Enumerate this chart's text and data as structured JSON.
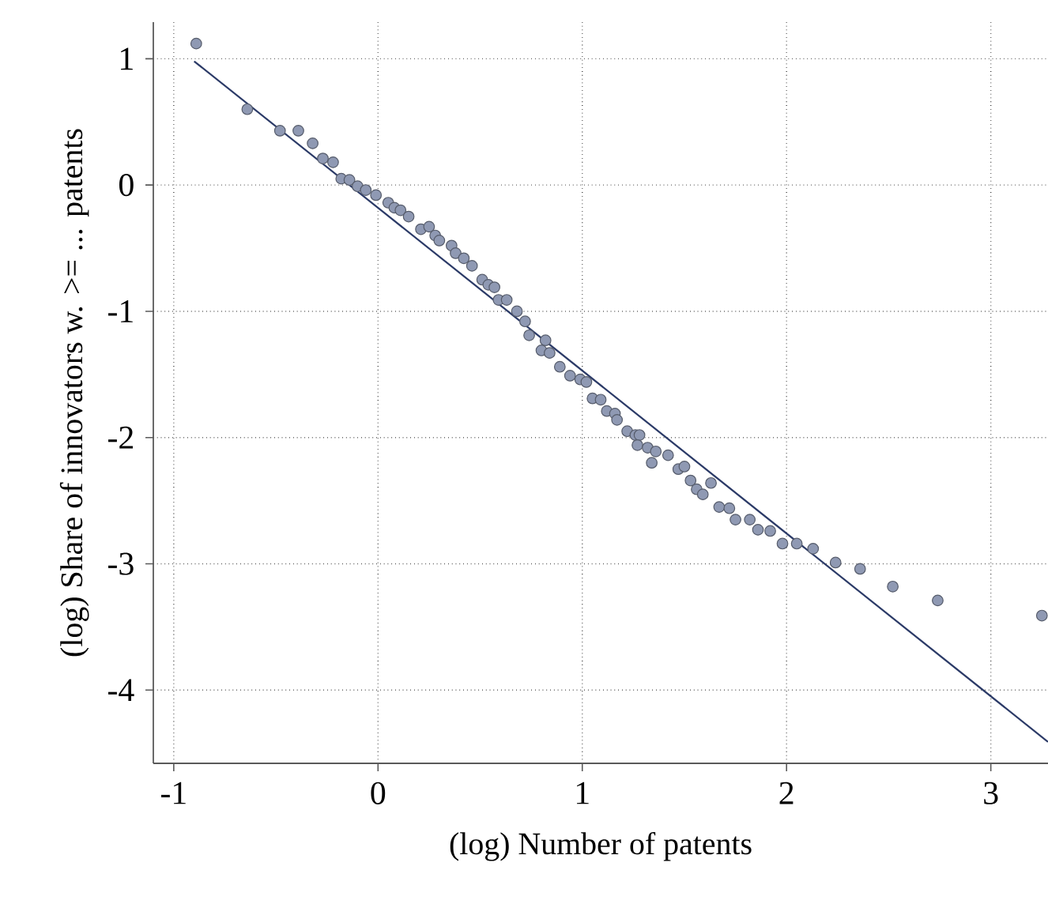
{
  "chart_data": {
    "type": "scatter",
    "xlabel": "(log) Number of patents",
    "ylabel": "(log) Share of innovators w. >= ... patents",
    "xlim": [
      -1.1,
      3.28
    ],
    "ylim": [
      -4.58,
      1.29
    ],
    "xticks": [
      -1,
      0,
      1,
      2,
      3
    ],
    "yticks": [
      -4,
      -3,
      -2,
      -1,
      0,
      1
    ],
    "grid": true,
    "series": [
      {
        "marker": "circle",
        "color": "#8f99b3",
        "x": [
          -0.89,
          -0.64,
          -0.48,
          -0.39,
          -0.32,
          -0.27,
          -0.22,
          -0.18,
          -0.14,
          -0.1,
          -0.06,
          -0.01,
          0.05,
          0.08,
          0.11,
          0.15,
          0.21,
          0.25,
          0.28,
          0.3,
          0.36,
          0.38,
          0.42,
          0.46,
          0.51,
          0.54,
          0.57,
          0.59,
          0.63,
          0.68,
          0.72,
          0.74,
          0.82,
          0.8,
          0.84,
          0.89,
          0.94,
          0.99,
          1.02,
          1.05,
          1.09,
          1.12,
          1.16,
          1.17,
          1.22,
          1.26,
          1.28,
          1.27,
          1.32,
          1.36,
          1.42,
          1.34,
          1.47,
          1.5,
          1.53,
          1.56,
          1.59,
          1.63,
          1.67,
          1.72,
          1.75,
          1.82,
          1.86,
          1.92,
          1.98,
          2.05,
          2.13,
          2.24,
          2.36,
          2.52,
          2.74,
          3.25
        ],
        "values": [
          1.12,
          0.6,
          0.43,
          0.43,
          0.33,
          0.21,
          0.18,
          0.05,
          0.04,
          -0.01,
          -0.04,
          -0.08,
          -0.14,
          -0.18,
          -0.2,
          -0.25,
          -0.35,
          -0.33,
          -0.4,
          -0.44,
          -0.48,
          -0.54,
          -0.58,
          -0.64,
          -0.75,
          -0.79,
          -0.81,
          -0.91,
          -0.91,
          -1.0,
          -1.08,
          -1.19,
          -1.23,
          -1.31,
          -1.33,
          -1.44,
          -1.51,
          -1.54,
          -1.56,
          -1.69,
          -1.7,
          -1.79,
          -1.81,
          -1.86,
          -1.95,
          -1.98,
          -1.98,
          -2.06,
          -2.08,
          -2.11,
          -2.14,
          -2.2,
          -2.25,
          -2.23,
          -2.34,
          -2.41,
          -2.45,
          -2.36,
          -2.55,
          -2.56,
          -2.65,
          -2.65,
          -2.73,
          -2.74,
          -2.84,
          -2.84,
          -2.88,
          -2.99,
          -3.04,
          -3.18,
          -3.29,
          -3.41
        ]
      },
      {
        "type": "line",
        "color": "#2b3a67",
        "x": [
          -0.9,
          3.28
        ],
        "values": [
          0.98,
          -4.41
        ]
      }
    ]
  }
}
